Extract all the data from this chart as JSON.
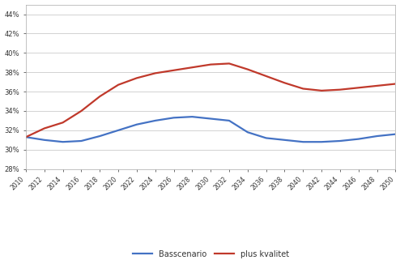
{
  "years": [
    2010,
    2012,
    2014,
    2016,
    2018,
    2020,
    2022,
    2024,
    2026,
    2028,
    2030,
    2032,
    2034,
    2036,
    2038,
    2040,
    2042,
    2044,
    2046,
    2048,
    2050
  ],
  "baseline": [
    0.313,
    0.31,
    0.308,
    0.309,
    0.314,
    0.32,
    0.326,
    0.33,
    0.333,
    0.334,
    0.332,
    0.33,
    0.318,
    0.312,
    0.31,
    0.308,
    0.308,
    0.309,
    0.311,
    0.314,
    0.316
  ],
  "plus_kvalitet": [
    0.313,
    0.322,
    0.328,
    0.34,
    0.355,
    0.367,
    0.374,
    0.379,
    0.382,
    0.385,
    0.388,
    0.389,
    0.383,
    0.376,
    0.369,
    0.363,
    0.361,
    0.362,
    0.364,
    0.366,
    0.368
  ],
  "baseline_color": "#4472c4",
  "kvalitet_color": "#c0392b",
  "ylim_min": 0.28,
  "ylim_max": 0.45,
  "yticks": [
    0.28,
    0.3,
    0.32,
    0.34,
    0.36,
    0.38,
    0.4,
    0.42,
    0.44
  ],
  "legend_baseline": "Basscenario",
  "legend_kvalitet": "plus kvalitet",
  "bg_color": "#ffffff",
  "plot_bg": "#ffffff",
  "grid_color": "#c0c0c0",
  "tick_color": "#333333",
  "line_width": 1.6
}
